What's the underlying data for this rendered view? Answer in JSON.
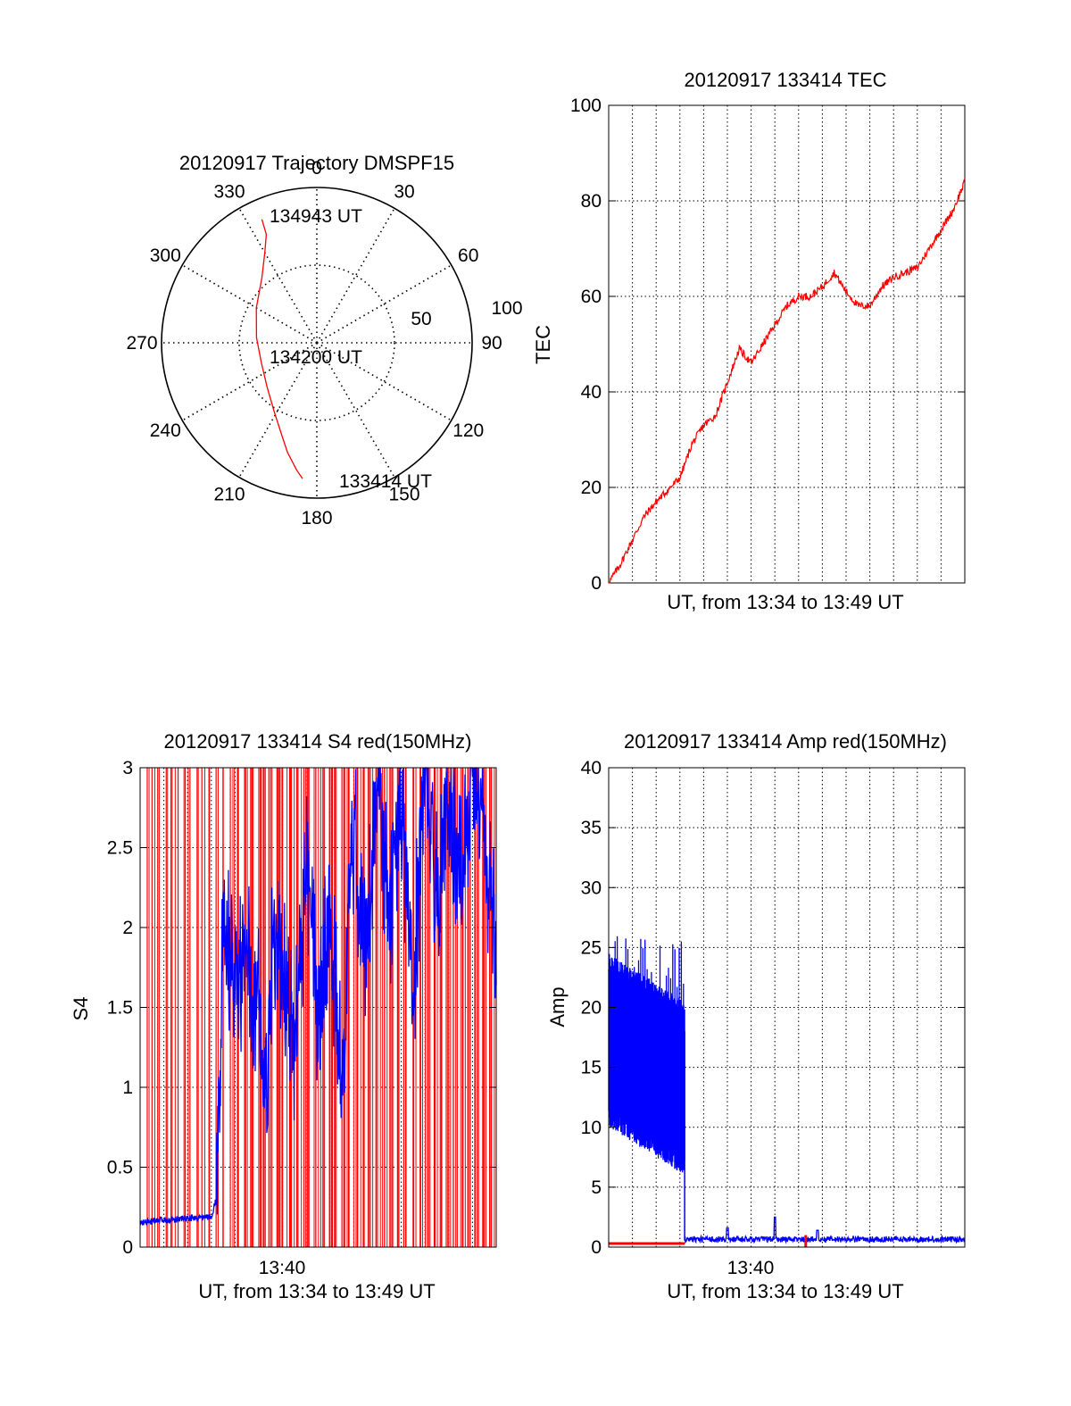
{
  "colors": {
    "red": "#ff0000",
    "blue": "#0000ff",
    "axis": "#000000",
    "grid": "#000000"
  },
  "chart_data": [
    {
      "type": "polar-trajectory",
      "title": "20120917 Trajectory DMSPF15",
      "angle_labels": [
        "0",
        "30",
        "60",
        "90",
        "120",
        "150",
        "180",
        "210",
        "240",
        "270",
        "300",
        "330"
      ],
      "radial_labels": [
        "50",
        "100"
      ],
      "radial_max": 100,
      "annotations": {
        "end": "134943 UT",
        "mid": "134200 UT",
        "start": "133414 UT"
      },
      "trajectory": {
        "color": "red",
        "points": [
          {
            "az": 336,
            "r": 87
          },
          {
            "az": 335,
            "r": 77
          },
          {
            "az": 330,
            "r": 67
          },
          {
            "az": 320,
            "r": 55
          },
          {
            "az": 300,
            "r": 45
          },
          {
            "az": 275,
            "r": 39
          },
          {
            "az": 250,
            "r": 38
          },
          {
            "az": 228,
            "r": 43
          },
          {
            "az": 212,
            "r": 52
          },
          {
            "az": 202,
            "r": 62
          },
          {
            "az": 195,
            "r": 73
          },
          {
            "az": 189,
            "r": 83
          },
          {
            "az": 186,
            "r": 88
          }
        ]
      }
    },
    {
      "type": "line",
      "title": "20120917 133414 TEC",
      "xlabel": "UT, from 13:34 to 13:49 UT",
      "ylabel": "TEC",
      "xlim": [
        0,
        15
      ],
      "ylim": [
        0,
        100
      ],
      "yticks": [
        "0",
        "20",
        "40",
        "60",
        "80",
        "100"
      ],
      "grid": true,
      "series": [
        {
          "color": "red",
          "x": [
            0,
            0.5,
            1,
            1.5,
            2,
            2.5,
            3,
            3.5,
            4,
            4.5,
            5,
            5.5,
            6,
            6.5,
            7,
            7.5,
            8,
            8.5,
            9,
            9.5,
            10,
            10.5,
            11,
            11.5,
            12,
            12.5,
            13,
            13.5,
            14,
            14.5,
            15
          ],
          "y": [
            0,
            4,
            9,
            14,
            17,
            19.5,
            22,
            29,
            33,
            35,
            42,
            49,
            46,
            50,
            54,
            58,
            60,
            60,
            62,
            65,
            61,
            58,
            58,
            62,
            64,
            65,
            66,
            70,
            74,
            78,
            84
          ]
        }
      ]
    },
    {
      "type": "line",
      "title": "20120917 133414 S4 red(150MHz)",
      "xlabel": "UT, from 13:34 to 13:49 UT",
      "ylabel": "S4",
      "xlim": [
        0,
        15
      ],
      "ylim": [
        0,
        3
      ],
      "yticks": [
        "0",
        "0.5",
        "1",
        "1.5",
        "2",
        "2.5",
        "3"
      ],
      "xticks": [
        {
          "x": 5.5,
          "label": "13:40"
        }
      ],
      "grid": true,
      "series": [
        {
          "color": "blue",
          "x": [
            0,
            1,
            2,
            3,
            3.2,
            3.5,
            4,
            4.5,
            5,
            5.3,
            5.6,
            6,
            6.5,
            7,
            7.5,
            8,
            8.5,
            9,
            9.5,
            10,
            10.5,
            11,
            11.5,
            12,
            12.5,
            13,
            13.5,
            14,
            14.5,
            15
          ],
          "y": [
            0.15,
            0.17,
            0.18,
            0.19,
            0.3,
            2,
            1.6,
            1.8,
            1.5,
            0.8,
            1.9,
            1.7,
            1.2,
            2.4,
            1.4,
            2.1,
            1.0,
            2.6,
            1.8,
            3.0,
            2.0,
            2.8,
            1.6,
            3.0,
            2.2,
            2.9,
            2.3,
            3.0,
            2.5,
            1.8
          ]
        },
        {
          "color": "red",
          "spikes_x": [
            0.3,
            0.5,
            0.8,
            1.1,
            1.3,
            1.6,
            1.9,
            2.1,
            2.4,
            2.6,
            2.9,
            3.2,
            3.5,
            3.8,
            4.1,
            4.4,
            4.7,
            5.0,
            5.2,
            5.5,
            5.8,
            6.0,
            6.3,
            6.6,
            6.9,
            7.1,
            7.4,
            7.7,
            8.0,
            8.2,
            8.5,
            8.8,
            9.1,
            9.4,
            9.7,
            10.0,
            10.3,
            10.6,
            10.9,
            11.2,
            11.5,
            11.8,
            12.1,
            12.4,
            12.7,
            13.0,
            13.3,
            13.6,
            13.9,
            14.2,
            14.5,
            14.8
          ],
          "spikes_top": [
            3,
            3,
            3,
            3,
            3,
            3,
            3,
            3,
            3,
            3,
            3,
            3,
            3,
            3,
            3,
            3,
            3,
            3,
            3,
            3,
            3,
            3,
            3,
            3,
            3,
            3,
            3,
            3,
            3,
            3,
            3,
            3,
            3,
            3,
            3,
            3,
            3,
            3,
            3,
            3,
            3,
            3,
            3,
            3,
            3,
            3,
            3,
            3,
            3,
            3,
            3,
            3
          ]
        }
      ]
    },
    {
      "type": "line",
      "title": "20120917 133414 Amp red(150MHz)",
      "xlabel": "UT, from 13:34 to 13:49 UT",
      "ylabel": "Amp",
      "xlim": [
        0,
        15
      ],
      "ylim": [
        0,
        40
      ],
      "yticks": [
        "0",
        "5",
        "10",
        "15",
        "20",
        "25",
        "30",
        "35",
        "40"
      ],
      "xticks": [
        {
          "x": 5.5,
          "label": "13:40"
        }
      ],
      "grid": true,
      "series": [
        {
          "color": "blue",
          "segment": {
            "x_end": 3.2,
            "upper_start": 23,
            "upper_end": 19,
            "lower_start": 12,
            "lower_end": 8,
            "spike_max": 26
          },
          "tail": {
            "x_start": 3.2,
            "x_end": 15,
            "base": 0.6,
            "noise": 0.5,
            "peaks": [
              {
                "x": 5.0,
                "y": 1.6
              },
              {
                "x": 7.0,
                "y": 2.5
              },
              {
                "x": 8.8,
                "y": 1.4
              }
            ]
          }
        },
        {
          "color": "red",
          "baseline": {
            "x_start": 0,
            "x_end": 3.2,
            "y": 0.3
          },
          "blip": {
            "x": 8.3,
            "y": 1.0
          }
        }
      ]
    }
  ]
}
